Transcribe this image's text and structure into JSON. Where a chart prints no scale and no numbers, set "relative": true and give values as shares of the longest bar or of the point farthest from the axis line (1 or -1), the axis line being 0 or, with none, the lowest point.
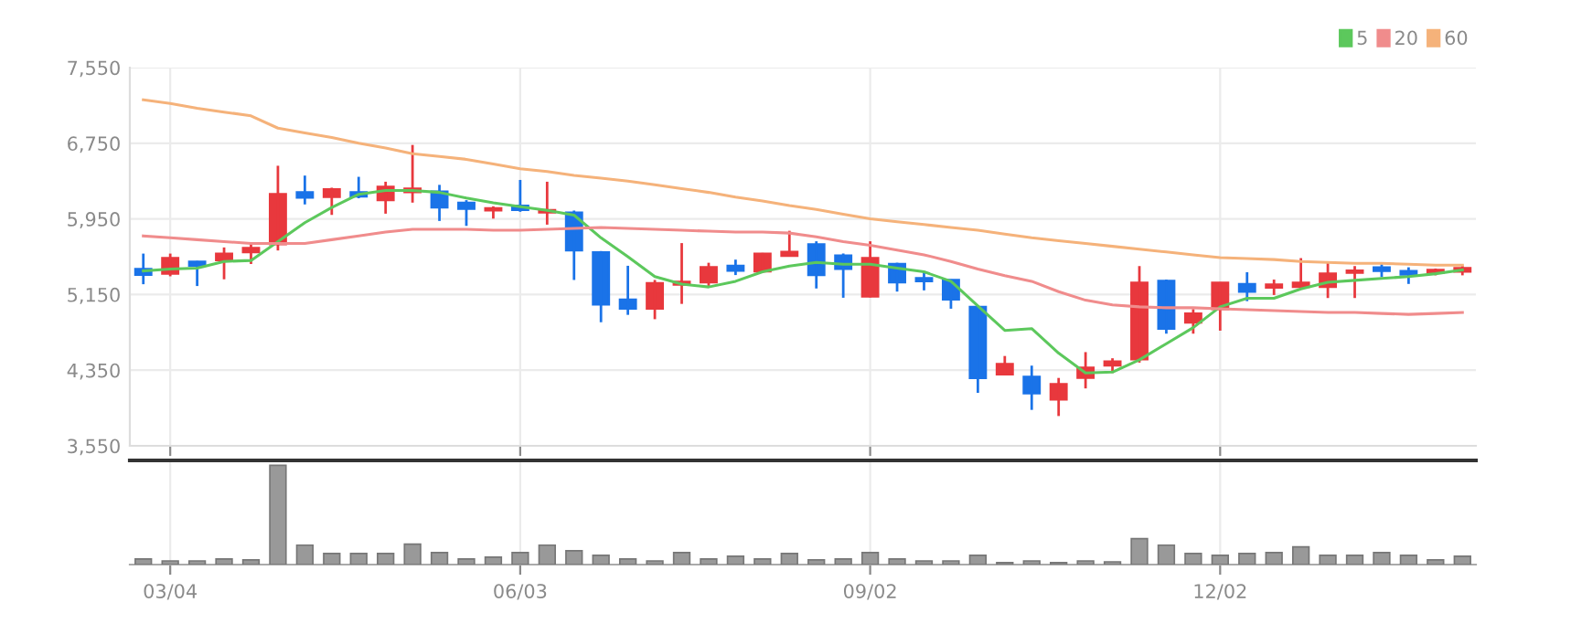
{
  "chart_data": [
    {
      "type": "candlestick",
      "categories": [
        null,
        null,
        null,
        null,
        null,
        null,
        null,
        null,
        null,
        null,
        null,
        null,
        null,
        null,
        null,
        null,
        null,
        null,
        null,
        null,
        null,
        null,
        null,
        null,
        null,
        null,
        null,
        null,
        null,
        null,
        null,
        null,
        null,
        null,
        null,
        null,
        null,
        null,
        null,
        null,
        null,
        null,
        null,
        null,
        null,
        null,
        null,
        null,
        null,
        null
      ],
      "ohlc": [
        [
          5421,
          5583,
          5259,
          5357
        ],
        [
          5369,
          5583,
          5343,
          5538
        ],
        [
          5499,
          5505,
          5240,
          5454
        ],
        [
          5512,
          5648,
          5311,
          5583
        ],
        [
          5596,
          5694,
          5473,
          5642
        ],
        [
          5681,
          6512,
          5616,
          6213
        ],
        [
          6233,
          6408,
          6103,
          6174
        ],
        [
          6181,
          6280,
          5992,
          6265
        ],
        [
          6233,
          6395,
          6168,
          6187
        ],
        [
          6148,
          6343,
          6005,
          6291
        ],
        [
          6233,
          6732,
          6122,
          6271
        ],
        [
          6239,
          6310,
          5928,
          6070
        ],
        [
          6122,
          6148,
          5876,
          6057
        ],
        [
          6038,
          6083,
          5953,
          6064
        ],
        [
          6090,
          6362,
          6025,
          6044
        ],
        [
          6018,
          6343,
          5889,
          6044
        ],
        [
          6018,
          6038,
          5304,
          5616
        ],
        [
          5597,
          5610,
          4857,
          5045
        ],
        [
          5097,
          5454,
          4935,
          5000
        ],
        [
          5000,
          5304,
          4889,
          5272
        ],
        [
          5253,
          5694,
          5051,
          5285
        ],
        [
          5279,
          5486,
          5240,
          5441
        ],
        [
          5454,
          5519,
          5356,
          5402
        ],
        [
          5395,
          5590,
          5382,
          5583
        ],
        [
          5558,
          5824,
          5551,
          5603
        ],
        [
          5681,
          5713,
          5214,
          5356
        ],
        [
          5564,
          5584,
          5116,
          5421
        ],
        [
          5129,
          5713,
          5120,
          5538
        ],
        [
          5473,
          5486,
          5181,
          5279
        ],
        [
          5324,
          5389,
          5194,
          5291
        ],
        [
          5304,
          5310,
          5000,
          5097
        ],
        [
          5019,
          5032,
          4110,
          4266
        ],
        [
          4305,
          4500,
          4300,
          4415
        ],
        [
          4281,
          4398,
          3930,
          4105
        ],
        [
          4040,
          4268,
          3865,
          4203
        ],
        [
          4268,
          4541,
          4157,
          4378
        ],
        [
          4398,
          4476,
          4320,
          4443
        ],
        [
          4463,
          5451,
          4430,
          5275
        ],
        [
          5295,
          5308,
          4736,
          4788
        ],
        [
          4853,
          4996,
          4736,
          4950
        ],
        [
          4996,
          5280,
          4768,
          5275
        ],
        [
          5262,
          5386,
          5080,
          5178
        ],
        [
          5223,
          5308,
          5145,
          5256
        ],
        [
          5230,
          5535,
          5210,
          5275
        ],
        [
          5230,
          5490,
          5113,
          5373
        ],
        [
          5379,
          5451,
          5113,
          5405
        ],
        [
          5438,
          5470,
          5334,
          5399
        ],
        [
          5399,
          5438,
          5262,
          5360
        ],
        [
          5379,
          5425,
          5353,
          5412
        ],
        [
          5392,
          5457,
          5353,
          5431
        ]
      ],
      "colors": [
        "#1a73e8",
        "#e8383d",
        "#1a73e8",
        "#e8383d",
        "#e8383d",
        "#e8383d",
        "#1a73e8",
        "#e8383d",
        "#1a73e8",
        "#e8383d",
        "#e8383d",
        "#1a73e8",
        "#1a73e8",
        "#e8383d",
        "#1a73e8",
        "#e8383d",
        "#1a73e8",
        "#1a73e8",
        "#1a73e8",
        "#e8383d",
        "#e8383d",
        "#e8383d",
        "#1a73e8",
        "#e8383d",
        "#e8383d",
        "#1a73e8",
        "#1a73e8",
        "#e8383d",
        "#1a73e8",
        "#1a73e8",
        "#1a73e8",
        "#1a73e8",
        "#e8383d",
        "#1a73e8",
        "#e8383d",
        "#e8383d",
        "#e8383d",
        "#e8383d",
        "#1a73e8",
        "#e8383d",
        "#e8383d",
        "#1a73e8",
        "#e8383d",
        "#e8383d",
        "#e8383d",
        "#e8383d",
        "#1a73e8",
        "#1a73e8",
        "#e8383d",
        "#e8383d"
      ],
      "series": [
        {
          "name": "5",
          "type": "line",
          "color": "#5cc85c",
          "values": [
            5400,
            5420,
            5430,
            5500,
            5510,
            5710,
            5910,
            6070,
            6210,
            6250,
            6250,
            6230,
            6170,
            6120,
            6080,
            6040,
            5990,
            5750,
            5550,
            5340,
            5260,
            5230,
            5290,
            5390,
            5450,
            5490,
            5470,
            5470,
            5430,
            5390,
            5290,
            5030,
            4770,
            4790,
            4530,
            4320,
            4330,
            4460,
            4630,
            4800,
            5020,
            5110,
            5110,
            5210,
            5280,
            5300,
            5320,
            5340,
            5370,
            5410
          ]
        },
        {
          "name": "20",
          "type": "line",
          "color": "#f08c8c",
          "values": [
            5770,
            5750,
            5730,
            5710,
            5690,
            5690,
            5690,
            5730,
            5770,
            5810,
            5840,
            5840,
            5840,
            5830,
            5830,
            5840,
            5850,
            5860,
            5850,
            5840,
            5830,
            5820,
            5810,
            5810,
            5800,
            5760,
            5710,
            5670,
            5620,
            5570,
            5500,
            5420,
            5350,
            5290,
            5180,
            5090,
            5040,
            5020,
            5010,
            5010,
            5000,
            4990,
            4980,
            4970,
            4960,
            4960,
            4950,
            4940,
            4950,
            4960
          ]
        },
        {
          "name": "60",
          "type": "line",
          "color": "#f5b27a",
          "values": [
            7210,
            7170,
            7120,
            7080,
            7040,
            6910,
            6860,
            6810,
            6750,
            6700,
            6640,
            6610,
            6580,
            6530,
            6480,
            6450,
            6410,
            6380,
            6350,
            6310,
            6270,
            6230,
            6180,
            6140,
            6090,
            6050,
            6000,
            5950,
            5920,
            5890,
            5860,
            5830,
            5790,
            5750,
            5720,
            5690,
            5660,
            5630,
            5600,
            5570,
            5540,
            5530,
            5520,
            5500,
            5490,
            5480,
            5480,
            5470,
            5460,
            5460
          ]
        }
      ],
      "ylim": [
        3550,
        7550
      ],
      "yticks": [
        {
          "value": 3550,
          "label": "3,550"
        },
        {
          "value": 4350,
          "label": "4,350"
        },
        {
          "value": 5150,
          "label": "5,150"
        },
        {
          "value": 5950,
          "label": "5,950"
        },
        {
          "value": 6750,
          "label": "6,750"
        },
        {
          "value": 7550,
          "label": "7,550"
        }
      ],
      "grid": true,
      "legend": "top right"
    },
    {
      "type": "bar",
      "relative": true,
      "color": "#999999",
      "categories": [
        null,
        "03/04",
        null,
        null,
        null,
        null,
        null,
        null,
        null,
        null,
        null,
        null,
        null,
        null,
        "06/03",
        null,
        null,
        null,
        null,
        null,
        null,
        null,
        null,
        null,
        null,
        null,
        null,
        "09/02",
        null,
        null,
        null,
        null,
        null,
        null,
        null,
        null,
        null,
        null,
        null,
        null,
        "12/02",
        null,
        null,
        null,
        null,
        null,
        null,
        null,
        null,
        null
      ],
      "values": [
        0.056,
        0.037,
        0.037,
        0.056,
        0.047,
        1,
        0.196,
        0.112,
        0.112,
        0.112,
        0.206,
        0.121,
        0.056,
        0.075,
        0.121,
        0.196,
        0.14,
        0.093,
        0.056,
        0.037,
        0.121,
        0.056,
        0.084,
        0.056,
        0.112,
        0.047,
        0.056,
        0.121,
        0.056,
        0.037,
        0.037,
        0.093,
        0.019,
        0.037,
        0.019,
        0.037,
        0.028,
        0.262,
        0.196,
        0.112,
        0.093,
        0.112,
        0.121,
        0.178,
        0.093,
        0.093,
        0.121,
        0.093,
        0.047,
        0.084
      ],
      "grid": "x"
    }
  ]
}
